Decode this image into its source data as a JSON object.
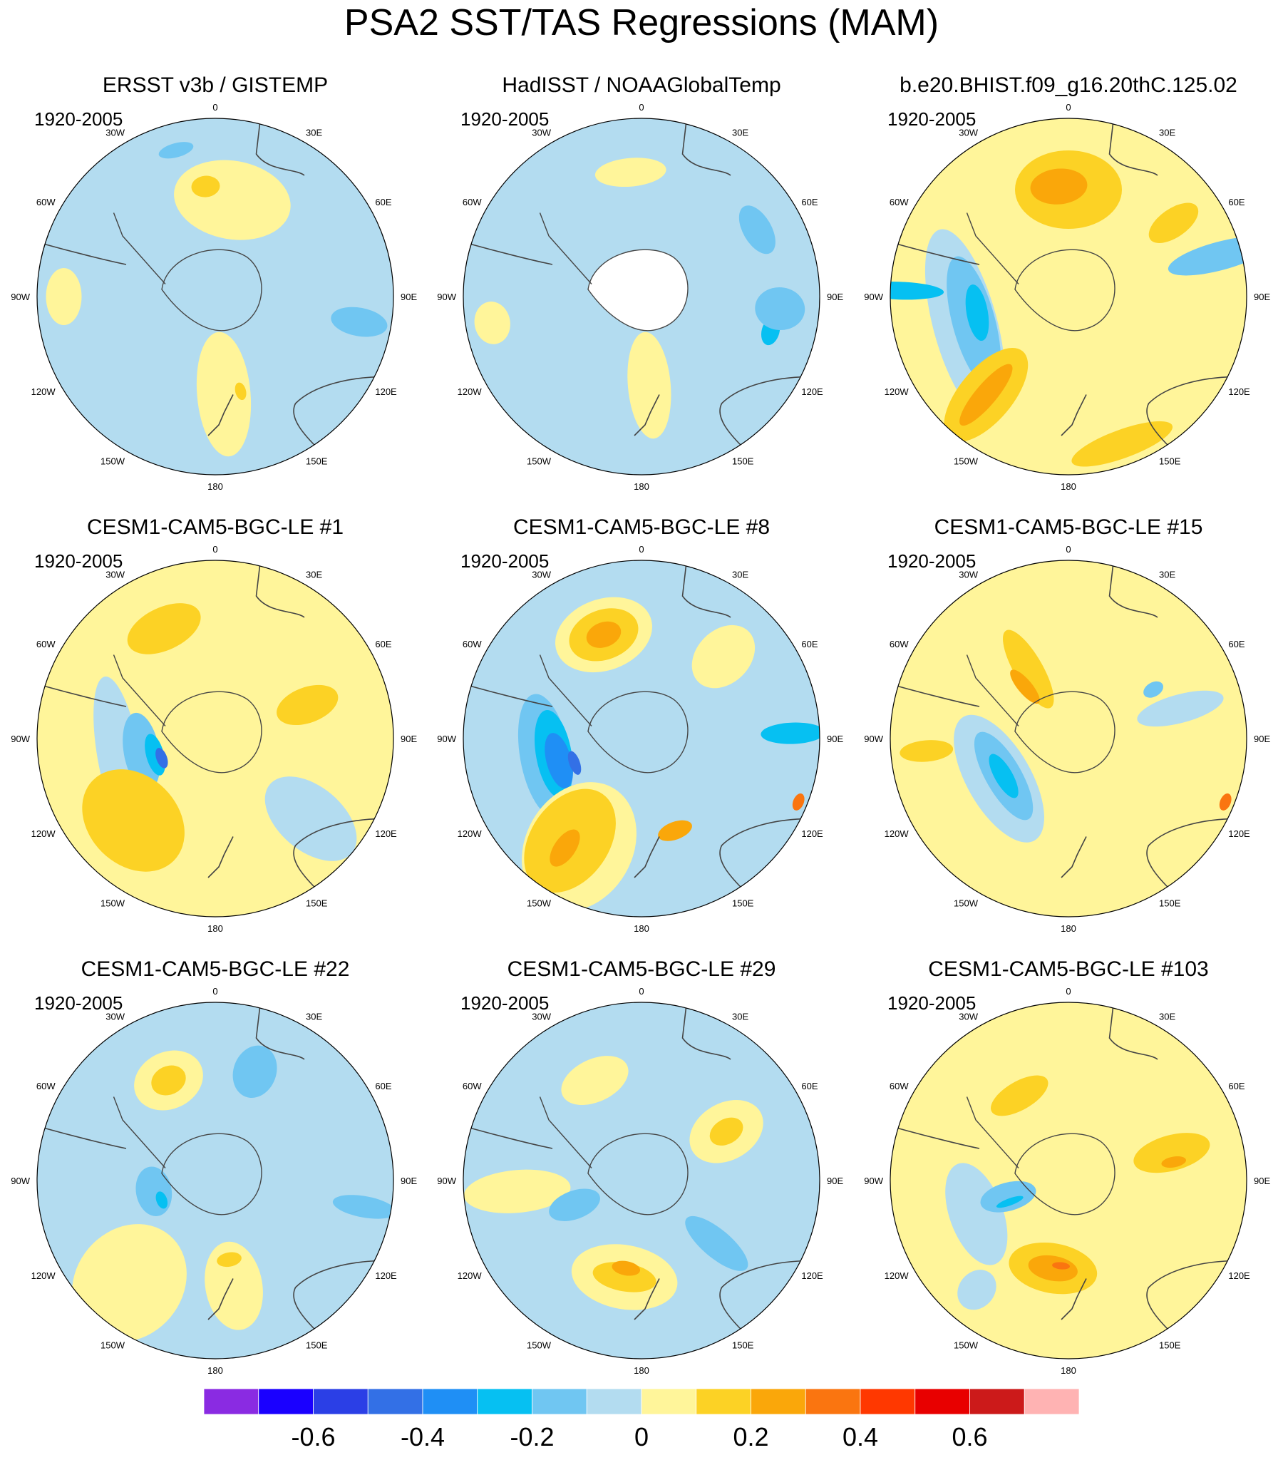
{
  "title": "PSA2 SST/TAS Regressions (MAM)",
  "colors": {
    "-0.75": "#8a2be2",
    "-0.65": "#1a00ff",
    "-0.55": "#2b3fe6",
    "-0.45": "#3370e6",
    "-0.35": "#1f8ff5",
    "-0.25": "#06c0f2",
    "-0.15": "#70c6f2",
    "-0.05": "#b3dcf0",
    "0.05": "#fff59a",
    "0.15": "#fcd225",
    "0.25": "#faa70a",
    "0.35": "#fa7510",
    "0.45": "#ff3800",
    "0.55": "#e80000",
    "0.65": "#cc1a1a",
    "0.75": "#ffb3b3",
    "land": "#ffffff",
    "coast": "#444444"
  },
  "colorbar": {
    "colors": [
      "#8a2be2",
      "#1a00ff",
      "#2b3fe6",
      "#3370e6",
      "#1f8ff5",
      "#06c0f2",
      "#70c6f2",
      "#b3dcf0",
      "#fff59a",
      "#fcd225",
      "#faa70a",
      "#fa7510",
      "#ff3800",
      "#e80000",
      "#cc1a1a",
      "#ffb3b3"
    ],
    "labels": [
      "-0.6",
      "-0.4",
      "-0.2",
      "0",
      "0.2",
      "0.4",
      "0.6"
    ]
  },
  "map_labels": {
    "top": "0",
    "bottom": "180",
    "left": "90W",
    "right": "90E",
    "ul1": "30W",
    "ul2": "60W",
    "ur1": "30E",
    "ur2": "60E",
    "ll1": "120W",
    "ll2": "150W",
    "lr1": "120E",
    "lr2": "150E"
  },
  "panels": [
    {
      "title": "ERSST v3b / GISTEMP",
      "period": "1920-2005",
      "background": -0.05,
      "patches": [
        {
          "value": 0.05,
          "lon": 10,
          "r": 0.55,
          "rx": 0.33,
          "ry": 0.22
        },
        {
          "value": 0.15,
          "lon": -5,
          "r": 0.62,
          "rx": 0.08,
          "ry": 0.06
        },
        {
          "value": 0.05,
          "lon": -90,
          "r": 0.85,
          "rx": 0.16,
          "ry": 0.1
        },
        {
          "value": 0.05,
          "lon": 175,
          "r": 0.55,
          "rx": 0.15,
          "ry": 0.35
        },
        {
          "value": 0.15,
          "lon": 165,
          "r": 0.55,
          "rx": 0.03,
          "ry": 0.05
        },
        {
          "value": -0.15,
          "lon": 100,
          "r": 0.82,
          "rx": 0.08,
          "ry": 0.16
        },
        {
          "value": -0.15,
          "lon": -15,
          "r": 0.85,
          "rx": 0.1,
          "ry": 0.04
        }
      ]
    },
    {
      "title": "HadISST / NOAAGlobalTemp",
      "period": "1920-2005",
      "background": -0.05,
      "patches": [
        {
          "value": 0.05,
          "lon": -5,
          "r": 0.7,
          "rx": 0.2,
          "ry": 0.08
        },
        {
          "value": 0.05,
          "lon": -100,
          "r": 0.85,
          "rx": 0.12,
          "ry": 0.1
        },
        {
          "value": 0.05,
          "lon": 175,
          "r": 0.5,
          "rx": 0.12,
          "ry": 0.3
        },
        {
          "value": -0.15,
          "lon": 60,
          "r": 0.75,
          "rx": 0.15,
          "ry": 0.08
        },
        {
          "value": -0.25,
          "lon": 105,
          "r": 0.75,
          "rx": 0.08,
          "ry": 0.05
        },
        {
          "value": -0.15,
          "lon": 95,
          "r": 0.78,
          "rx": 0.12,
          "ry": 0.14
        }
      ]
    },
    {
      "title": "b.e20.BHIST.f09_g16.20thC.125.02",
      "period": "1920-2005",
      "background": 0.05,
      "patches": [
        {
          "value": 0.15,
          "lon": 0,
          "r": 0.6,
          "rx": 0.3,
          "ry": 0.22
        },
        {
          "value": 0.25,
          "lon": -5,
          "r": 0.62,
          "rx": 0.16,
          "ry": 0.1
        },
        {
          "value": 0.15,
          "lon": 55,
          "r": 0.72,
          "rx": 0.08,
          "ry": 0.16
        },
        {
          "value": -0.05,
          "lon": -105,
          "r": 0.6,
          "rx": 0.55,
          "ry": 0.18
        },
        {
          "value": -0.15,
          "lon": -105,
          "r": 0.55,
          "rx": 0.38,
          "ry": 0.12
        },
        {
          "value": -0.25,
          "lon": -100,
          "r": 0.52,
          "rx": 0.16,
          "ry": 0.06
        },
        {
          "value": -0.25,
          "lon": -88,
          "r": 0.95,
          "rx": 0.05,
          "ry": 0.25
        },
        {
          "value": 0.15,
          "lon": -140,
          "r": 0.72,
          "rx": 0.15,
          "ry": 0.32
        },
        {
          "value": 0.25,
          "lon": -140,
          "r": 0.72,
          "rx": 0.06,
          "ry": 0.22
        },
        {
          "value": -0.15,
          "lon": 75,
          "r": 0.88,
          "rx": 0.08,
          "ry": 0.3
        },
        {
          "value": 0.15,
          "lon": 160,
          "r": 0.88,
          "rx": 0.3,
          "ry": 0.08
        }
      ]
    },
    {
      "title": "CESM1-CAM5-BGC-LE #1",
      "period": "1920-2005",
      "background": 0.05,
      "patches": [
        {
          "value": 0.15,
          "lon": -25,
          "r": 0.68,
          "rx": 0.22,
          "ry": 0.12
        },
        {
          "value": 0.15,
          "lon": 70,
          "r": 0.55,
          "rx": 0.1,
          "ry": 0.18
        },
        {
          "value": -0.05,
          "lon": -100,
          "r": 0.55,
          "rx": 0.45,
          "ry": 0.12
        },
        {
          "value": -0.15,
          "lon": -100,
          "r": 0.42,
          "rx": 0.22,
          "ry": 0.1
        },
        {
          "value": -0.25,
          "lon": -105,
          "r": 0.35,
          "rx": 0.12,
          "ry": 0.05
        },
        {
          "value": -0.45,
          "lon": -110,
          "r": 0.32,
          "rx": 0.06,
          "ry": 0.03
        },
        {
          "value": 0.15,
          "lon": -135,
          "r": 0.65,
          "rx": 0.32,
          "ry": 0.25
        },
        {
          "value": -0.05,
          "lon": 130,
          "r": 0.7,
          "rx": 0.18,
          "ry": 0.3
        }
      ]
    },
    {
      "title": "CESM1-CAM5-BGC-LE #8",
      "period": "1920-2005",
      "background": -0.05,
      "patches": [
        {
          "value": 0.05,
          "lon": -20,
          "r": 0.62,
          "rx": 0.28,
          "ry": 0.2
        },
        {
          "value": 0.15,
          "lon": -20,
          "r": 0.62,
          "rx": 0.2,
          "ry": 0.14
        },
        {
          "value": 0.25,
          "lon": -20,
          "r": 0.62,
          "rx": 0.1,
          "ry": 0.07
        },
        {
          "value": 0.05,
          "lon": 45,
          "r": 0.65,
          "rx": 0.15,
          "ry": 0.2
        },
        {
          "value": -0.15,
          "lon": -100,
          "r": 0.55,
          "rx": 0.35,
          "ry": 0.14
        },
        {
          "value": -0.25,
          "lon": -100,
          "r": 0.5,
          "rx": 0.25,
          "ry": 0.1
        },
        {
          "value": -0.35,
          "lon": -105,
          "r": 0.48,
          "rx": 0.16,
          "ry": 0.07
        },
        {
          "value": -0.45,
          "lon": -110,
          "r": 0.4,
          "rx": 0.07,
          "ry": 0.03
        },
        {
          "value": 0.05,
          "lon": -150,
          "r": 0.7,
          "rx": 0.3,
          "ry": 0.38
        },
        {
          "value": 0.15,
          "lon": -145,
          "r": 0.7,
          "rx": 0.22,
          "ry": 0.32
        },
        {
          "value": 0.25,
          "lon": -145,
          "r": 0.75,
          "rx": 0.06,
          "ry": 0.12
        },
        {
          "value": 0.25,
          "lon": 160,
          "r": 0.55,
          "rx": 0.1,
          "ry": 0.05
        },
        {
          "value": -0.25,
          "lon": 88,
          "r": 0.85,
          "rx": 0.06,
          "ry": 0.18
        },
        {
          "value": 0.35,
          "lon": 112,
          "r": 0.95,
          "rx": 0.05,
          "ry": 0.03
        }
      ]
    },
    {
      "title": "CESM1-CAM5-BGC-LE #15",
      "period": "1920-2005",
      "background": 0.05,
      "patches": [
        {
          "value": 0.15,
          "lon": -30,
          "r": 0.45,
          "rx": 0.08,
          "ry": 0.25
        },
        {
          "value": 0.25,
          "lon": -40,
          "r": 0.38,
          "rx": 0.04,
          "ry": 0.12
        },
        {
          "value": -0.05,
          "lon": 75,
          "r": 0.65,
          "rx": 0.08,
          "ry": 0.25
        },
        {
          "value": -0.15,
          "lon": 60,
          "r": 0.55,
          "rx": 0.04,
          "ry": 0.06
        },
        {
          "value": -0.05,
          "lon": -120,
          "r": 0.45,
          "rx": 0.4,
          "ry": 0.18
        },
        {
          "value": -0.15,
          "lon": -120,
          "r": 0.42,
          "rx": 0.28,
          "ry": 0.1
        },
        {
          "value": -0.25,
          "lon": -120,
          "r": 0.42,
          "rx": 0.14,
          "ry": 0.05
        },
        {
          "value": 0.15,
          "lon": -95,
          "r": 0.8,
          "rx": 0.06,
          "ry": 0.15
        },
        {
          "value": 0.35,
          "lon": 112,
          "r": 0.95,
          "rx": 0.05,
          "ry": 0.03
        }
      ]
    },
    {
      "title": "CESM1-CAM5-BGC-LE #22",
      "period": "1920-2005",
      "background": -0.05,
      "patches": [
        {
          "value": 0.05,
          "lon": -25,
          "r": 0.62,
          "rx": 0.2,
          "ry": 0.16
        },
        {
          "value": 0.15,
          "lon": -25,
          "r": 0.62,
          "rx": 0.1,
          "ry": 0.08
        },
        {
          "value": -0.15,
          "lon": 20,
          "r": 0.65,
          "rx": 0.12,
          "ry": 0.15
        },
        {
          "value": -0.15,
          "lon": -100,
          "r": 0.35,
          "rx": 0.14,
          "ry": 0.1
        },
        {
          "value": -0.25,
          "lon": -110,
          "r": 0.32,
          "rx": 0.05,
          "ry": 0.03
        },
        {
          "value": 0.05,
          "lon": -140,
          "r": 0.75,
          "rx": 0.3,
          "ry": 0.35
        },
        {
          "value": 0.05,
          "lon": 170,
          "r": 0.6,
          "rx": 0.16,
          "ry": 0.25
        },
        {
          "value": 0.15,
          "lon": 170,
          "r": 0.45,
          "rx": 0.07,
          "ry": 0.04
        },
        {
          "value": -0.15,
          "lon": 100,
          "r": 0.85,
          "rx": 0.06,
          "ry": 0.18
        }
      ]
    },
    {
      "title": "CESM1-CAM5-BGC-LE #29",
      "period": "1920-2005",
      "background": -0.05,
      "patches": [
        {
          "value": 0.05,
          "lon": -25,
          "r": 0.62,
          "rx": 0.2,
          "ry": 0.12
        },
        {
          "value": 0.05,
          "lon": 60,
          "r": 0.55,
          "rx": 0.16,
          "ry": 0.22
        },
        {
          "value": 0.15,
          "lon": 60,
          "r": 0.55,
          "rx": 0.07,
          "ry": 0.1
        },
        {
          "value": 0.05,
          "lon": -95,
          "r": 0.7,
          "rx": 0.12,
          "ry": 0.3
        },
        {
          "value": -0.15,
          "lon": -110,
          "r": 0.4,
          "rx": 0.08,
          "ry": 0.15
        },
        {
          "value": 0.05,
          "lon": -170,
          "r": 0.55,
          "rx": 0.3,
          "ry": 0.18
        },
        {
          "value": 0.15,
          "lon": -170,
          "r": 0.55,
          "rx": 0.18,
          "ry": 0.08
        },
        {
          "value": 0.25,
          "lon": -170,
          "r": 0.5,
          "rx": 0.08,
          "ry": 0.04
        },
        {
          "value": -0.15,
          "lon": 130,
          "r": 0.55,
          "rx": 0.08,
          "ry": 0.22
        }
      ]
    },
    {
      "title": "CESM1-CAM5-BGC-LE #103",
      "period": "1920-2005",
      "background": 0.05,
      "patches": [
        {
          "value": 0.15,
          "lon": -30,
          "r": 0.55,
          "rx": 0.18,
          "ry": 0.08
        },
        {
          "value": 0.15,
          "lon": 75,
          "r": 0.6,
          "rx": 0.1,
          "ry": 0.22
        },
        {
          "value": 0.25,
          "lon": 80,
          "r": 0.6,
          "rx": 0.03,
          "ry": 0.07
        },
        {
          "value": -0.05,
          "lon": -110,
          "r": 0.55,
          "rx": 0.3,
          "ry": 0.15
        },
        {
          "value": -0.15,
          "lon": -105,
          "r": 0.35,
          "rx": 0.08,
          "ry": 0.16
        },
        {
          "value": -0.25,
          "lon": -110,
          "r": 0.35,
          "rx": 0.02,
          "ry": 0.08
        },
        {
          "value": 0.15,
          "lon": -170,
          "r": 0.5,
          "rx": 0.25,
          "ry": 0.14
        },
        {
          "value": 0.25,
          "lon": -170,
          "r": 0.5,
          "rx": 0.14,
          "ry": 0.07
        },
        {
          "value": 0.35,
          "lon": -175,
          "r": 0.48,
          "rx": 0.05,
          "ry": 0.02
        },
        {
          "value": -0.05,
          "lon": -140,
          "r": 0.8,
          "rx": 0.1,
          "ry": 0.12
        }
      ]
    }
  ]
}
